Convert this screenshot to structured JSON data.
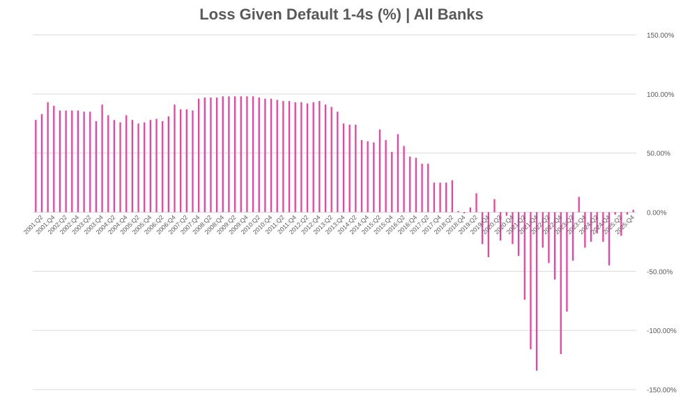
{
  "chart_data": {
    "type": "bar",
    "title": "Loss Given Default 1-4s (%) | All Banks",
    "xlabel": "",
    "ylabel": "",
    "ylim": [
      -150,
      150
    ],
    "yticks": [
      "150.00%",
      "100.00%",
      "50.00%",
      "0.00%",
      "-50.00%",
      "-100.00%",
      "-150.00%"
    ],
    "ytick_values": [
      150,
      100,
      50,
      0,
      -50,
      -100,
      -150
    ],
    "y_axis_side": "right",
    "grid": true,
    "legend": "none",
    "bar_color": "#ee3fa2",
    "categories": [
      "2001:Q1",
      "2001:Q2",
      "2001:Q3",
      "2001:Q4",
      "2002:Q1",
      "2002:Q2",
      "2002:Q3",
      "2002:Q4",
      "2003:Q1",
      "2003:Q2",
      "2003:Q3",
      "2003:Q4",
      "2004:Q1",
      "2004:Q2",
      "2004:Q3",
      "2004:Q4",
      "2005:Q1",
      "2005:Q2",
      "2005:Q3",
      "2005:Q4",
      "2006:Q1",
      "2006:Q2",
      "2006:Q3",
      "2006:Q4",
      "2007:Q1",
      "2007:Q2",
      "2007:Q3",
      "2007:Q4",
      "2008:Q1",
      "2008:Q2",
      "2008:Q3",
      "2008:Q4",
      "2009:Q1",
      "2009:Q2",
      "2009:Q3",
      "2009:Q4",
      "2010:Q1",
      "2010:Q2",
      "2010:Q3",
      "2010:Q4",
      "2011:Q1",
      "2011:Q2",
      "2011:Q3",
      "2011:Q4",
      "2012:Q1",
      "2012:Q2",
      "2012:Q3",
      "2012:Q4",
      "2013:Q1",
      "2013:Q2",
      "2013:Q3",
      "2013:Q4",
      "2014:Q1",
      "2014:Q2",
      "2014:Q3",
      "2014:Q4",
      "2015:Q1",
      "2015:Q2",
      "2015:Q3",
      "2015:Q4",
      "2016:Q1",
      "2016:Q2",
      "2016:Q3",
      "2016:Q4",
      "2017:Q1",
      "2017:Q2",
      "2017:Q3",
      "2017:Q4",
      "2018:Q1",
      "2018:Q2",
      "2018:Q3",
      "2018:Q4",
      "2019:Q1",
      "2019:Q2",
      "2019:Q3",
      "2019:Q4",
      "2020:Q1",
      "2020:Q2",
      "2020:Q3",
      "2020:Q4",
      "2021:Q1",
      "2021:Q2",
      "2021:Q3",
      "2021:Q4",
      "2022:Q1",
      "2022:Q2",
      "2022:Q3",
      "2022:Q4",
      "2023:Q1",
      "2023:Q2",
      "2023:Q3",
      "2023:Q4",
      "2024:Q1",
      "2024:Q2",
      "2024:Q3",
      "2024:Q4",
      "2025:Q1",
      "2025:Q2",
      "2025:Q3",
      "2025:Q4"
    ],
    "visible_tick_labels": [
      "2001:Q2",
      "2001:Q4",
      "2002:Q2",
      "2002:Q4",
      "2003:Q2",
      "2003:Q4",
      "2004:Q2",
      "2004:Q4",
      "2005:Q2",
      "2005:Q4",
      "2006:Q2",
      "2006:Q4",
      "2007:Q2",
      "2007:Q4",
      "2008:Q2",
      "2008:Q4",
      "2009:Q2",
      "2009:Q4",
      "2010:Q2",
      "2010:Q4",
      "2011:Q2",
      "2011:Q4",
      "2012:Q2",
      "2012:Q4",
      "2013:Q2",
      "2013:Q4",
      "2014:Q2",
      "2014:Q4",
      "2015:Q2",
      "2015:Q4",
      "2016:Q2",
      "2016:Q4",
      "2017:Q2",
      "2017:Q4",
      "2018:Q2",
      "2018:Q4",
      "2019:Q2",
      "2019:Q4",
      "2020:Q2",
      "2020:Q4",
      "2021:Q2",
      "2021:Q4",
      "2022:Q2",
      "2022:Q4",
      "2023:Q2",
      "2023:Q4",
      "2024:Q2",
      "2024:Q4",
      "2025:Q2",
      "2025:Q4"
    ],
    "values": [
      78,
      83,
      93,
      90,
      86,
      86,
      86,
      86,
      85,
      85,
      77,
      91,
      82,
      78,
      76,
      82,
      78,
      75,
      76,
      78,
      79,
      77,
      81,
      91,
      87,
      87,
      86,
      96,
      97,
      97,
      97,
      98,
      98,
      98,
      98,
      98,
      98,
      97,
      96,
      96,
      95,
      94,
      94,
      93,
      93,
      92,
      93,
      94,
      91,
      89,
      85,
      75,
      74,
      74,
      61,
      60,
      59,
      70,
      61,
      51,
      66,
      56,
      47,
      46,
      41,
      41,
      25,
      25,
      25,
      27,
      1,
      -1,
      4,
      16,
      -27,
      -38,
      11,
      -24,
      -3,
      -27,
      -37,
      -74,
      -116,
      -134,
      -30,
      -43,
      -57,
      -120,
      -84,
      -41,
      13,
      -30,
      -25,
      -18,
      -25,
      -45,
      -2,
      -20,
      -2,
      2
    ]
  }
}
